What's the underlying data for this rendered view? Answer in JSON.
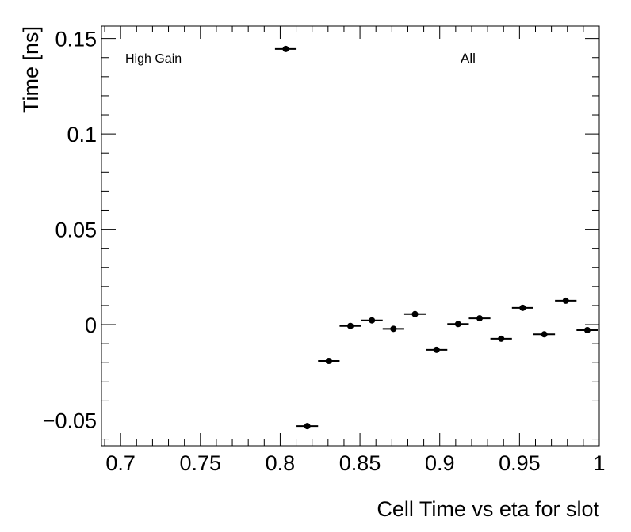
{
  "chart_data": {
    "type": "scatter",
    "title": "",
    "xlabel": "Cell Time vs eta for slot",
    "ylabel": "Time [ns]",
    "xlim": [
      0.688,
      1.0
    ],
    "ylim": [
      -0.0635,
      0.1565
    ],
    "x_ticks": [
      {
        "value": 0.7,
        "label": "0.7"
      },
      {
        "value": 0.75,
        "label": "0.75"
      },
      {
        "value": 0.8,
        "label": "0.8"
      },
      {
        "value": 0.85,
        "label": "0.85"
      },
      {
        "value": 0.9,
        "label": "0.9"
      },
      {
        "value": 0.95,
        "label": "0.95"
      },
      {
        "value": 1.0,
        "label": "1"
      }
    ],
    "y_ticks": [
      {
        "value": -0.05,
        "label": "−0.05"
      },
      {
        "value": 0,
        "label": "0"
      },
      {
        "value": 0.05,
        "label": "0.05"
      },
      {
        "value": 0.1,
        "label": "0.1"
      },
      {
        "value": 0.15,
        "label": "0.15"
      }
    ],
    "annotations": [
      "High Gain",
      "All"
    ],
    "grid": false,
    "bin_half_width": 0.00675,
    "points": [
      {
        "x": 0.8035,
        "y": 0.1445
      },
      {
        "x": 0.817,
        "y": -0.0532
      },
      {
        "x": 0.8305,
        "y": -0.0191
      },
      {
        "x": 0.844,
        "y": -0.0007
      },
      {
        "x": 0.8575,
        "y": 0.0022
      },
      {
        "x": 0.871,
        "y": -0.0022
      },
      {
        "x": 0.8845,
        "y": 0.0055
      },
      {
        "x": 0.898,
        "y": -0.0132
      },
      {
        "x": 0.9115,
        "y": 0.0003
      },
      {
        "x": 0.925,
        "y": 0.0033
      },
      {
        "x": 0.9385,
        "y": -0.0074
      },
      {
        "x": 0.952,
        "y": 0.0088
      },
      {
        "x": 0.9655,
        "y": -0.0051
      },
      {
        "x": 0.979,
        "y": 0.0125
      },
      {
        "x": 0.9925,
        "y": -0.0029
      }
    ]
  }
}
